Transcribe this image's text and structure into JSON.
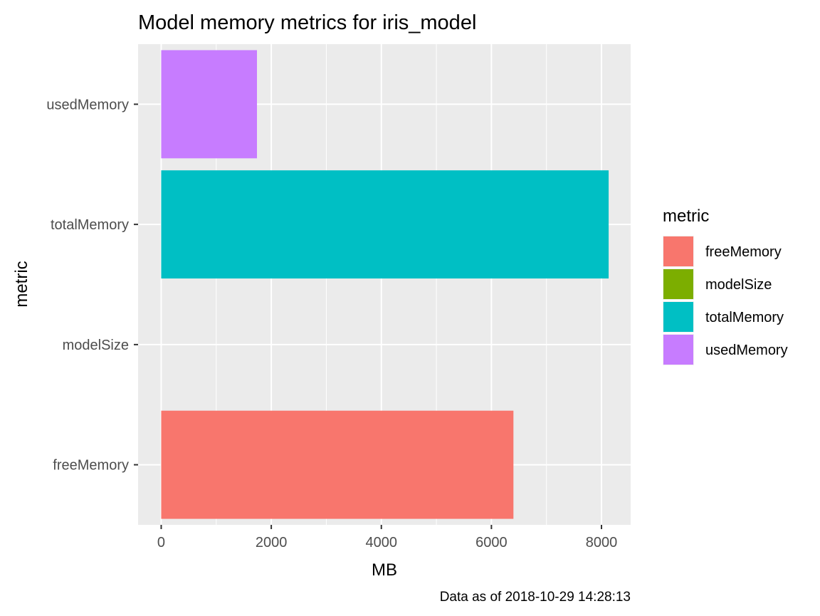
{
  "chart_data": {
    "type": "bar",
    "orientation": "horizontal",
    "title": "Model memory metrics for iris_model",
    "xlabel": "MB",
    "ylabel": "metric",
    "caption": "Data as of 2018-10-29 14:28:13",
    "categories": [
      "freeMemory",
      "modelSize",
      "totalMemory",
      "usedMemory"
    ],
    "values": [
      6400,
      0,
      8130,
      1740
    ],
    "colors": [
      "#F8766D",
      "#7CAE00",
      "#00BFC4",
      "#C77CFF"
    ],
    "xlim": [
      -420,
      8530
    ],
    "xticks": [
      0,
      2000,
      4000,
      6000,
      8000
    ],
    "xtick_labels": [
      "0",
      "2000",
      "4000",
      "6000",
      "8000"
    ],
    "grid": true,
    "panel_background": "#EBEBEB",
    "legend": {
      "title": "metric",
      "position": "right",
      "entries": [
        "freeMemory",
        "modelSize",
        "totalMemory",
        "usedMemory"
      ]
    }
  }
}
